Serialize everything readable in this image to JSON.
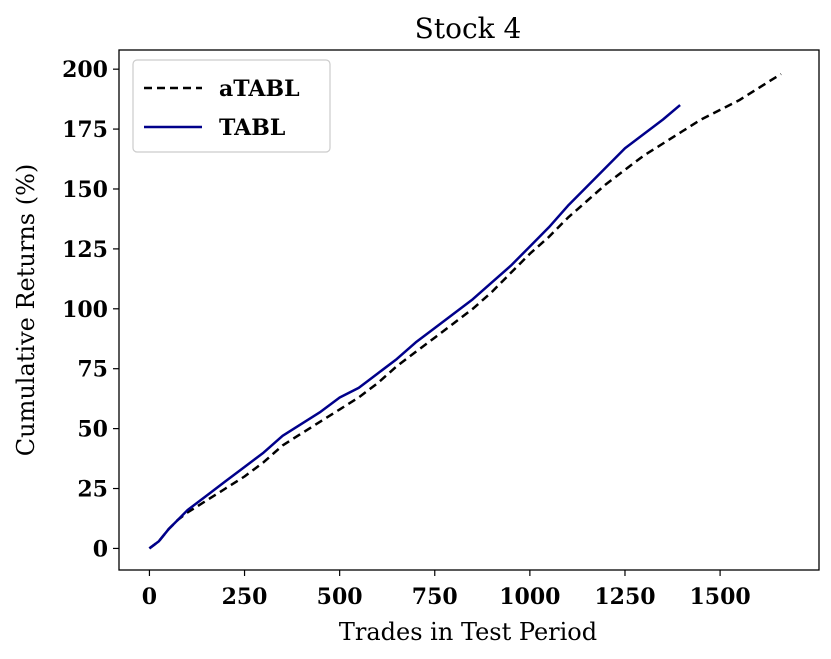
{
  "chart_data": {
    "type": "line",
    "title": "Stock 4",
    "xlabel": "Trades in Test Period",
    "ylabel": "Cumulative Returns (%)",
    "xlim": [
      -80,
      1760
    ],
    "ylim": [
      -9,
      208
    ],
    "xticks": [
      0,
      250,
      500,
      750,
      1000,
      1250,
      1500
    ],
    "yticks": [
      0,
      25,
      50,
      75,
      100,
      125,
      150,
      175,
      200
    ],
    "grid": false,
    "legend_position": "upper-left",
    "series": [
      {
        "name": "aTABL",
        "color": "#000000",
        "style": "dashed",
        "x": [
          0,
          25,
          50,
          75,
          100,
          150,
          200,
          250,
          300,
          350,
          400,
          450,
          500,
          550,
          600,
          650,
          700,
          750,
          800,
          850,
          900,
          950,
          1000,
          1050,
          1100,
          1150,
          1200,
          1250,
          1300,
          1350,
          1400,
          1450,
          1500,
          1550,
          1600,
          1660
        ],
        "y": [
          0,
          3,
          8,
          12,
          15,
          20,
          25,
          30,
          36,
          43,
          48,
          53,
          58,
          63,
          69,
          76,
          82,
          88,
          94,
          100,
          107,
          115,
          123,
          130,
          138,
          145,
          152,
          158,
          164,
          169,
          174,
          179,
          183,
          187,
          192,
          198
        ]
      },
      {
        "name": "TABL",
        "color": "#00008b",
        "style": "solid",
        "x": [
          0,
          25,
          50,
          75,
          100,
          150,
          200,
          250,
          300,
          350,
          400,
          450,
          500,
          550,
          600,
          650,
          700,
          750,
          800,
          850,
          900,
          950,
          1000,
          1050,
          1100,
          1150,
          1200,
          1250,
          1300,
          1350,
          1395
        ],
        "y": [
          0,
          3,
          8,
          12,
          16,
          22,
          28,
          34,
          40,
          47,
          52,
          57,
          63,
          67,
          73,
          79,
          86,
          92,
          98,
          104,
          111,
          118,
          126,
          134,
          143,
          151,
          159,
          167,
          173,
          179,
          185
        ]
      }
    ]
  }
}
